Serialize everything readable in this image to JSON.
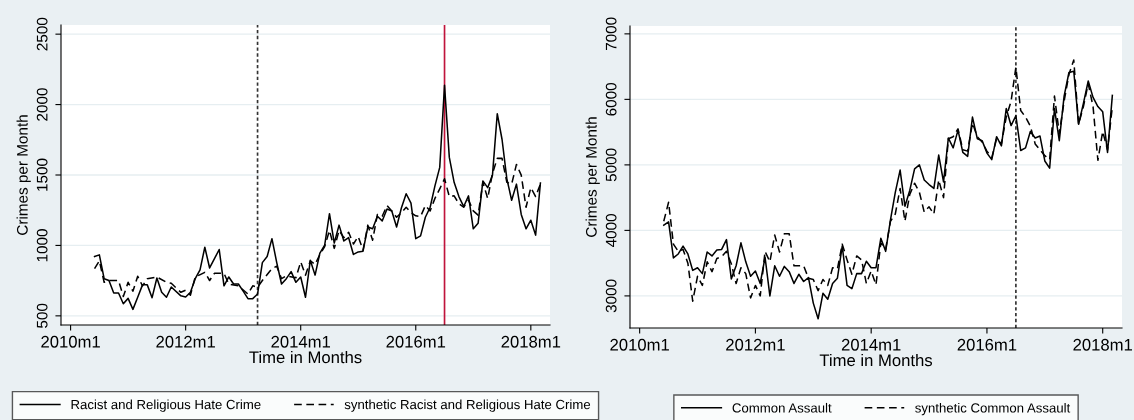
{
  "chart_data": [
    {
      "type": "line",
      "xlabel": "Time in Months",
      "ylabel": "Crimes per Month",
      "xlim": [
        "2009-11",
        "2018-05"
      ],
      "xticks": [
        {
          "value": "2010-01",
          "label": "2010m1"
        },
        {
          "value": "2012-01",
          "label": "2012m1"
        },
        {
          "value": "2014-01",
          "label": "2014m1"
        },
        {
          "value": "2016-01",
          "label": "2016m1"
        },
        {
          "value": "2018-01",
          "label": "2018m1"
        }
      ],
      "ylim": [
        435,
        2565
      ],
      "yticks": [
        500,
        1000,
        1500,
        2000,
        2500
      ],
      "grid": "y",
      "legend": "bottom",
      "ref_lines": [
        {
          "axis": "x",
          "value": "2013-04",
          "color": "#333333",
          "line_style": "dotted"
        },
        {
          "axis": "x",
          "value": "2016-07",
          "color": "#c0143c",
          "line_style": "solid"
        }
      ],
      "series": [
        {
          "name": "Racist and Religious Hate Crime",
          "color": "#000000",
          "line_style": "solid",
          "x": [
            "2010-06",
            "2010-07",
            "2010-08",
            "2010-09",
            "2010-10",
            "2010-11",
            "2010-12",
            "2011-01",
            "2011-02",
            "2011-03",
            "2011-04",
            "2011-05",
            "2011-06",
            "2011-07",
            "2011-08",
            "2011-09",
            "2011-10",
            "2011-12",
            "2012-01",
            "2012-02",
            "2012-03",
            "2012-04",
            "2012-05",
            "2012-06",
            "2012-08",
            "2012-09",
            "2012-10",
            "2012-11",
            "2012-12",
            "2013-01",
            "2013-02",
            "2013-03",
            "2013-04",
            "2013-05",
            "2013-06",
            "2013-07",
            "2013-08",
            "2013-09",
            "2013-10",
            "2013-11",
            "2013-12",
            "2014-01",
            "2014-02",
            "2014-03",
            "2014-04",
            "2014-05",
            "2014-06",
            "2014-07",
            "2014-08",
            "2014-09",
            "2014-10",
            "2014-11",
            "2014-12",
            "2015-01",
            "2015-02",
            "2015-03",
            "2015-04",
            "2015-05",
            "2015-06",
            "2015-07",
            "2015-08",
            "2015-09",
            "2015-10",
            "2015-11",
            "2015-12",
            "2016-01",
            "2016-02",
            "2016-03",
            "2016-04",
            "2016-05",
            "2016-06",
            "2016-07",
            "2016-08",
            "2016-09",
            "2016-10",
            "2016-11",
            "2016-12",
            "2017-01",
            "2017-02",
            "2017-03",
            "2017-04",
            "2017-05",
            "2017-06",
            "2017-07",
            "2017-08",
            "2017-09",
            "2017-10",
            "2017-11",
            "2017-12",
            "2018-01",
            "2018-02",
            "2018-03"
          ],
          "values": [
            921,
            933,
            764,
            751,
            662,
            662,
            586,
            624,
            546,
            632,
            720,
            720,
            629,
            769,
            667,
            632,
            705,
            642,
            634,
            667,
            764,
            827,
            987,
            840,
            971,
            713,
            776,
            726,
            726,
            675,
            622,
            622,
            655,
            878,
            921,
            1048,
            878,
            726,
            764,
            814,
            738,
            776,
            632,
            895,
            789,
            946,
            1002,
            1225,
            1017,
            1144,
            1032,
            1055,
            936,
            954,
            959,
            1131,
            1118,
            1207,
            1174,
            1258,
            1245,
            1131,
            1266,
            1367,
            1301,
            1048,
            1068,
            1200,
            1271,
            1423,
            1554,
            2137,
            1625,
            1448,
            1347,
            1276,
            1352,
            1118,
            1157,
            1458,
            1410,
            1499,
            1935,
            1752,
            1473,
            1321,
            1435,
            1220,
            1118,
            1179,
            1073,
            1443
          ]
        },
        {
          "name": "synthetic Racist and Religious Hate Crime",
          "color": "#000000",
          "line_style": "dashed",
          "x": [
            "2010-06",
            "2010-07",
            "2010-08",
            "2010-09",
            "2010-10",
            "2010-11",
            "2010-12",
            "2011-01",
            "2011-02",
            "2011-03",
            "2011-04",
            "2011-05",
            "2011-07",
            "2011-09",
            "2011-10",
            "2011-12",
            "2012-01",
            "2012-02",
            "2012-03",
            "2012-05",
            "2012-06",
            "2012-07",
            "2012-09",
            "2012-10",
            "2012-12",
            "2013-02",
            "2013-03",
            "2013-04",
            "2013-05",
            "2013-07",
            "2013-08",
            "2013-09",
            "2013-10",
            "2013-12",
            "2014-01",
            "2014-02",
            "2014-03",
            "2014-04",
            "2014-05",
            "2014-06",
            "2014-07",
            "2014-08",
            "2014-09",
            "2014-10",
            "2014-11",
            "2014-12",
            "2015-01",
            "2015-02",
            "2015-03",
            "2015-04",
            "2015-05",
            "2015-06",
            "2015-07",
            "2015-08",
            "2015-09",
            "2015-10",
            "2015-11",
            "2015-12",
            "2016-01",
            "2016-02",
            "2016-03",
            "2016-04",
            "2016-05",
            "2016-06",
            "2016-07",
            "2016-08",
            "2016-09",
            "2016-10",
            "2016-11",
            "2016-12",
            "2017-01",
            "2017-02",
            "2017-03",
            "2017-04",
            "2017-05",
            "2017-06",
            "2017-07",
            "2017-08",
            "2017-09",
            "2017-10",
            "2017-11",
            "2017-12",
            "2018-01",
            "2018-02",
            "2018-03"
          ],
          "values": [
            835,
            890,
            738,
            751,
            751,
            751,
            637,
            738,
            675,
            781,
            713,
            764,
            776,
            738,
            731,
            667,
            682,
            647,
            776,
            809,
            751,
            802,
            802,
            726,
            713,
            655,
            713,
            703,
            751,
            835,
            852,
            764,
            784,
            771,
            883,
            789,
            890,
            865,
            936,
            992,
            1106,
            979,
            1106,
            1055,
            1093,
            1010,
            1063,
            966,
            1144,
            1037,
            1220,
            1207,
            1283,
            1245,
            1200,
            1233,
            1271,
            1233,
            1210,
            1205,
            1283,
            1245,
            1334,
            1402,
            1473,
            1347,
            1352,
            1296,
            1271,
            1322,
            1245,
            1215,
            1448,
            1334,
            1511,
            1618,
            1618,
            1448,
            1435,
            1575,
            1499,
            1271,
            1410,
            1347,
            1435
          ]
        }
      ]
    },
    {
      "type": "line",
      "xlabel": "Time in Months",
      "ylabel": "Crimes per Month",
      "xlim": [
        "2009-11",
        "2018-05"
      ],
      "xticks": [
        {
          "value": "2010-01",
          "label": "2010m1"
        },
        {
          "value": "2012-01",
          "label": "2012m1"
        },
        {
          "value": "2014-01",
          "label": "2014m1"
        },
        {
          "value": "2016-01",
          "label": "2016m1"
        },
        {
          "value": "2018-01",
          "label": "2018m1"
        }
      ],
      "ylim": [
        2510,
        7120
      ],
      "yticks": [
        3000,
        4000,
        5000,
        6000,
        7000
      ],
      "grid": "y",
      "legend": "bottom",
      "ref_lines": [
        {
          "axis": "x",
          "value": "2016-07",
          "color": "#333333",
          "line_style": "dotted"
        }
      ],
      "series": [
        {
          "name": "Common Assault",
          "color": "#000000",
          "line_style": "solid",
          "x": [
            "2010-06",
            "2010-07",
            "2010-08",
            "2010-09",
            "2010-10",
            "2010-11",
            "2010-12",
            "2011-01",
            "2011-02",
            "2011-03",
            "2011-04",
            "2011-05",
            "2011-06",
            "2011-07",
            "2011-08",
            "2011-09",
            "2011-10",
            "2011-11",
            "2011-12",
            "2012-01",
            "2012-02",
            "2012-03",
            "2012-04",
            "2012-05",
            "2012-06",
            "2012-07",
            "2012-08",
            "2012-09",
            "2012-10",
            "2012-11",
            "2012-12",
            "2013-01",
            "2013-02",
            "2013-03",
            "2013-04",
            "2013-05",
            "2013-06",
            "2013-07",
            "2013-08",
            "2013-09",
            "2013-10",
            "2013-11",
            "2013-12",
            "2014-01",
            "2014-02",
            "2014-03",
            "2014-04",
            "2014-05",
            "2014-06",
            "2014-07",
            "2014-08",
            "2014-09",
            "2014-10",
            "2014-11",
            "2014-12",
            "2015-01",
            "2015-02",
            "2015-03",
            "2015-04",
            "2015-05",
            "2015-06",
            "2015-07",
            "2015-08",
            "2015-09",
            "2015-10",
            "2015-11",
            "2015-12",
            "2016-01",
            "2016-02",
            "2016-03",
            "2016-04",
            "2016-05",
            "2016-06",
            "2016-07",
            "2016-08",
            "2016-09",
            "2016-10",
            "2016-11",
            "2016-12",
            "2017-01",
            "2017-02",
            "2017-03",
            "2017-04",
            "2017-05",
            "2017-06",
            "2017-07",
            "2017-08",
            "2017-09",
            "2017-10",
            "2017-11",
            "2017-12",
            "2018-01",
            "2018-02",
            "2018-03"
          ],
          "values": [
            4080,
            4130,
            3580,
            3640,
            3760,
            3640,
            3390,
            3430,
            3340,
            3670,
            3610,
            3700,
            3710,
            3860,
            3260,
            3460,
            3810,
            3520,
            3300,
            3380,
            3190,
            3590,
            3000,
            3460,
            3300,
            3450,
            3370,
            3190,
            3330,
            3220,
            3280,
            2890,
            2650,
            3040,
            2950,
            3190,
            3270,
            3760,
            3160,
            3110,
            3340,
            3340,
            3530,
            3430,
            3430,
            3880,
            3680,
            4160,
            4580,
            4920,
            4370,
            4610,
            4940,
            5000,
            4770,
            4700,
            4640,
            5150,
            4740,
            5410,
            5260,
            5530,
            5190,
            5130,
            5730,
            5400,
            5370,
            5180,
            5080,
            5430,
            5290,
            5860,
            5600,
            5750,
            5220,
            5260,
            5510,
            5410,
            5440,
            5060,
            4950,
            5860,
            5370,
            6050,
            6410,
            6430,
            5620,
            5940,
            6280,
            6030,
            5890,
            5810,
            5190,
            6060
          ]
        },
        {
          "name": "synthetic Common Assault",
          "color": "#000000",
          "line_style": "dashed",
          "x": [
            "2010-06",
            "2010-07",
            "2010-08",
            "2010-09",
            "2010-10",
            "2010-11",
            "2010-12",
            "2011-01",
            "2011-02",
            "2011-03",
            "2011-04",
            "2011-05",
            "2011-06",
            "2011-07",
            "2011-08",
            "2011-09",
            "2011-10",
            "2011-11",
            "2011-12",
            "2012-01",
            "2012-02",
            "2012-03",
            "2012-04",
            "2012-05",
            "2012-06",
            "2012-07",
            "2012-08",
            "2012-09",
            "2012-10",
            "2012-11",
            "2012-12",
            "2013-01",
            "2013-02",
            "2013-03",
            "2013-04",
            "2013-05",
            "2013-06",
            "2013-07",
            "2013-08",
            "2013-09",
            "2013-10",
            "2013-11",
            "2013-12",
            "2014-01",
            "2014-02",
            "2014-03",
            "2014-04",
            "2014-05",
            "2014-06",
            "2014-07",
            "2014-08",
            "2014-09",
            "2014-10",
            "2014-11",
            "2014-12",
            "2015-01",
            "2015-02",
            "2015-03",
            "2015-04",
            "2015-05",
            "2015-06",
            "2015-07",
            "2015-08",
            "2015-09",
            "2015-10",
            "2015-11",
            "2015-12",
            "2016-01",
            "2016-02",
            "2016-03",
            "2016-04",
            "2016-05",
            "2016-06",
            "2016-07",
            "2016-08",
            "2016-09",
            "2016-10",
            "2016-11",
            "2016-12",
            "2017-01",
            "2017-02",
            "2017-03",
            "2017-04",
            "2017-05",
            "2017-06",
            "2017-07",
            "2017-08",
            "2017-09",
            "2017-10",
            "2017-11",
            "2017-12",
            "2018-01",
            "2018-02",
            "2018-03"
          ],
          "values": [
            4140,
            4430,
            3790,
            3680,
            3710,
            3500,
            2920,
            3300,
            3160,
            3520,
            3370,
            3570,
            3600,
            3680,
            3490,
            3190,
            3430,
            3340,
            2970,
            3160,
            3000,
            3680,
            3520,
            3930,
            3670,
            3950,
            3950,
            3460,
            3460,
            3460,
            3270,
            3250,
            3080,
            3250,
            3160,
            3430,
            3410,
            3790,
            3550,
            3330,
            3610,
            3550,
            3190,
            3380,
            3170,
            3810,
            3710,
            4140,
            4250,
            4640,
            4140,
            4550,
            4720,
            4580,
            4280,
            4360,
            4250,
            4770,
            4500,
            5400,
            5430,
            5550,
            5230,
            5210,
            5640,
            5430,
            5350,
            5210,
            5110,
            5400,
            5320,
            5730,
            5970,
            6490,
            5830,
            5730,
            5590,
            5320,
            5230,
            5140,
            5080,
            6050,
            5480,
            5970,
            6380,
            6600,
            5620,
            5890,
            6240,
            5890,
            5070,
            5510,
            5230,
            5890
          ]
        }
      ]
    }
  ]
}
